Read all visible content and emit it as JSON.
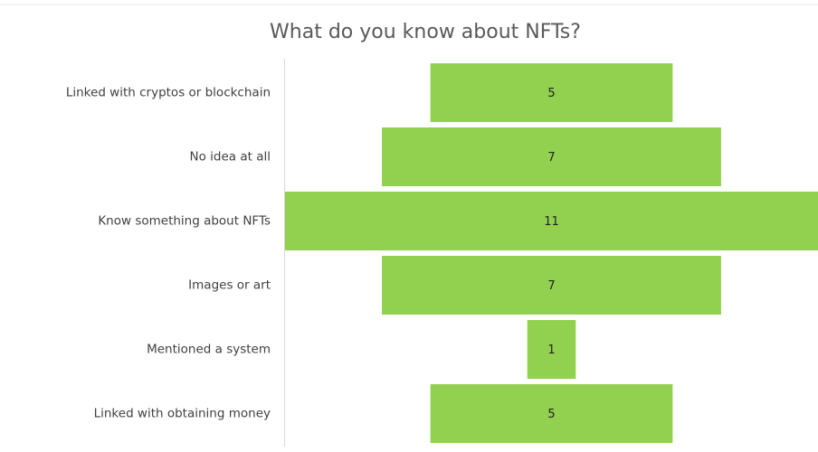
{
  "chart_data": {
    "type": "funnel",
    "title": "What do you know about NFTs?",
    "categories": [
      "Linked with cryptos or blockchain",
      "No idea at all",
      "Know something about NFTs",
      "Images or art",
      "Mentioned a system",
      "Linked with obtaining money"
    ],
    "values": [
      5,
      7,
      11,
      7,
      1,
      5
    ],
    "color": "#92d050"
  }
}
